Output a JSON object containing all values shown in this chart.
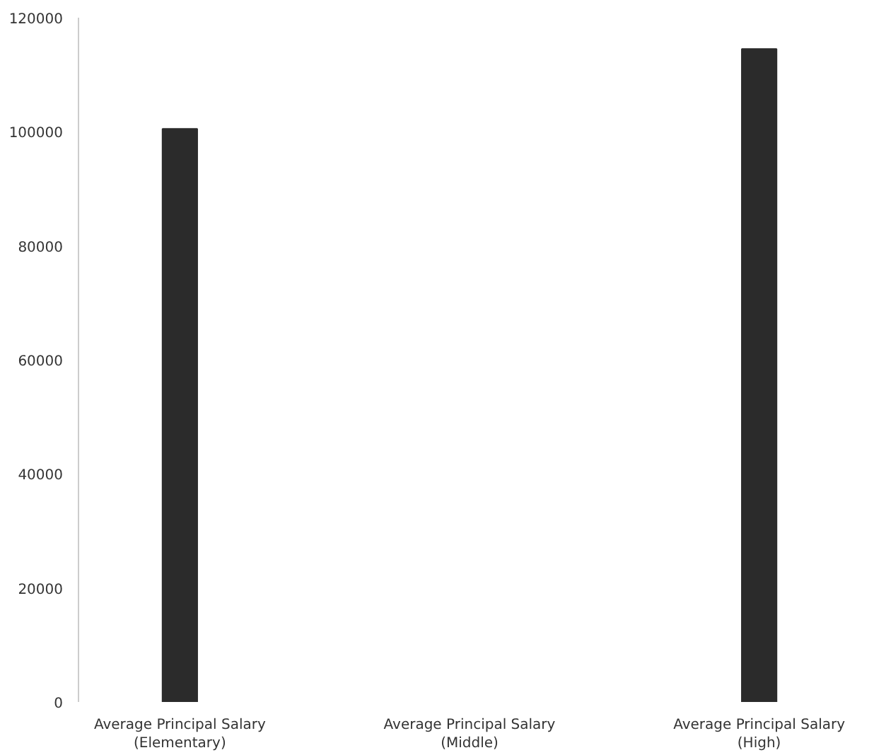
{
  "chart_data": {
    "type": "bar",
    "categories": [
      "Average Principal Salary (Elementary)",
      "Average Principal Salary (Middle)",
      "Average Principal Salary (High)"
    ],
    "values": [
      100500,
      null,
      114500
    ],
    "color": "#2b2b2b",
    "ylim": [
      0,
      120000
    ],
    "yticks": [
      0,
      20000,
      40000,
      60000,
      80000,
      100000,
      120000
    ],
    "grid": false
  }
}
